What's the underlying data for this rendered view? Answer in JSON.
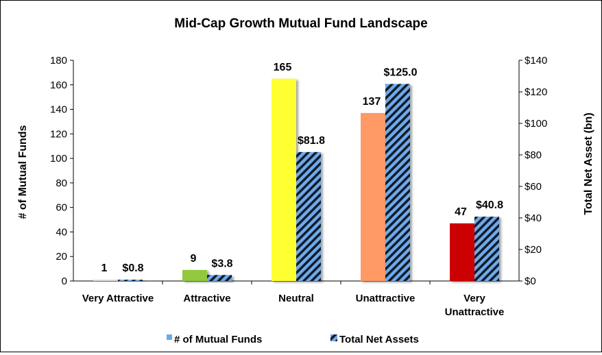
{
  "chart_data": {
    "type": "bar",
    "title": "Mid-Cap Growth Mutual Fund Landscape",
    "categories": [
      "Very Attractive",
      "Attractive",
      "Neutral",
      "Unattractive",
      "Very Unattractive"
    ],
    "category_lines": [
      [
        "Very Attractive"
      ],
      [
        "Attractive"
      ],
      [
        "Neutral"
      ],
      [
        "Unattractive"
      ],
      [
        "Very",
        "Unattractive"
      ]
    ],
    "series": [
      {
        "name": "# of Mutual Funds",
        "axis": "left",
        "values": [
          1,
          9,
          165,
          137,
          47
        ],
        "labels": [
          "1",
          "9",
          "165",
          "137",
          "47"
        ],
        "colors": [
          "#d9d9d9",
          "#92c83e",
          "#ffff33",
          "#ff9966",
          "#cc0000"
        ],
        "legend_color": "#6fa8e8"
      },
      {
        "name": "Total Net Assets",
        "axis": "right",
        "values": [
          0.8,
          3.8,
          81.8,
          125.0,
          40.8
        ],
        "labels": [
          "$0.8",
          "$3.8",
          "$81.8",
          "$125.0",
          "$40.8"
        ],
        "pattern_color_a": "#6fa8e8",
        "pattern_color_b": "#0d1b2a"
      }
    ],
    "ylabel": "# of Mutual Funds",
    "ylim": [
      0,
      180
    ],
    "yticks": [
      0,
      20,
      40,
      60,
      80,
      100,
      120,
      140,
      160,
      180
    ],
    "y2label": "Total Net Asset (bn)",
    "y2lim": [
      0,
      140
    ],
    "y2ticks": [
      "$0",
      "$20",
      "$40",
      "$60",
      "$80",
      "$100",
      "$120",
      "$140"
    ],
    "grid": false,
    "legend_position": "bottom"
  }
}
